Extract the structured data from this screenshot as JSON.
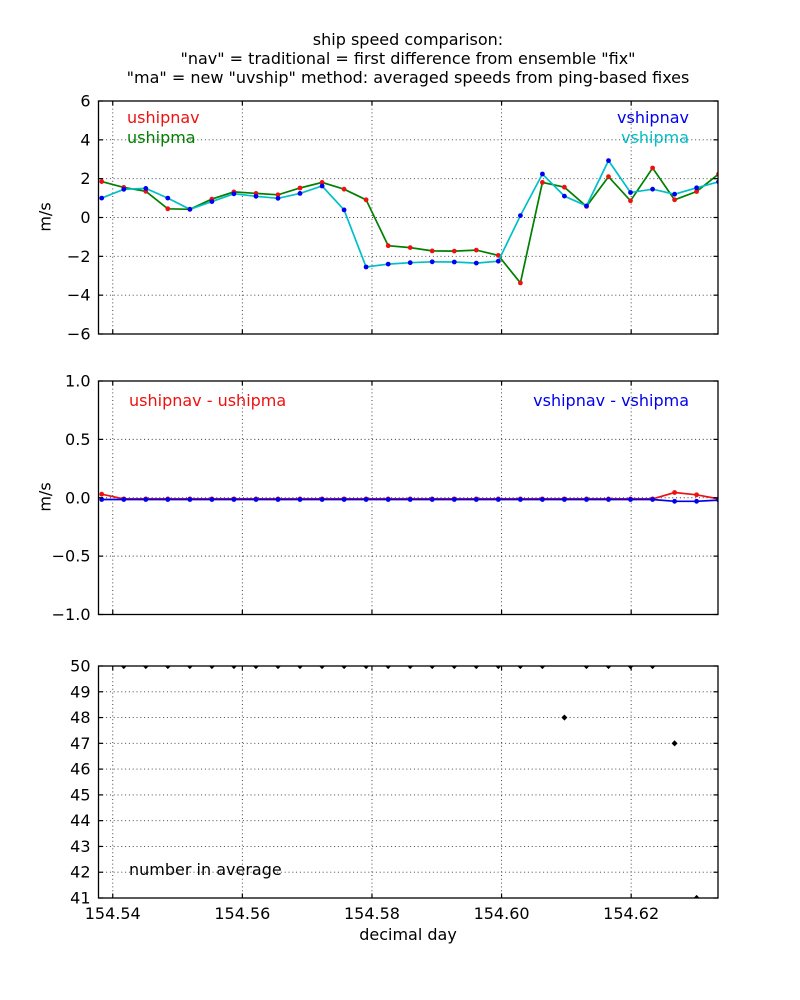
{
  "title": {
    "line1": "ship speed comparison:",
    "line2": "\"nav\" = traditional = first difference from ensemble \"fix\"",
    "line3": "\"ma\" = new \"uvship\" method: averaged speeds from ping-based fixes"
  },
  "xlabel": "decimal day",
  "colors": {
    "ushipnav": "#ee1111",
    "ushipma": "#008000",
    "vshipnav": "#0000ee",
    "vshipma": "#00bfc8",
    "count": "#000000",
    "axis": "#000000",
    "grid": "#333333",
    "background": "#ffffff"
  },
  "legends": {
    "ushipnav": "ushipnav",
    "ushipma": "ushipma",
    "vshipnav": "vshipnav",
    "vshipma": "vshipma",
    "udiff": "ushipnav - ushipma",
    "vdiff": "vshipnav - vshipma",
    "count": "number in average"
  },
  "chart_data": [
    {
      "type": "line",
      "ylabel": "m/s",
      "ylim": [
        -6,
        6
      ],
      "yticks": [
        -6,
        -4,
        -2,
        0,
        2,
        4,
        6
      ],
      "yticklabels": [
        "−6",
        "−4",
        "−2",
        "0",
        "2",
        "4",
        "6"
      ],
      "xlim": [
        154.5378,
        154.6334
      ],
      "xticks": [
        154.54,
        154.56,
        154.58,
        154.6,
        154.62
      ],
      "xticklabels": [
        "154.54",
        "154.56",
        "154.58",
        "154.60",
        "154.62"
      ],
      "show_xticklabels": false,
      "grid": true,
      "x": [
        154.5383,
        154.5417,
        154.5451,
        154.5485,
        154.5519,
        154.5553,
        154.5587,
        154.5621,
        154.5655,
        154.5689,
        154.5723,
        154.5757,
        154.5791,
        154.5825,
        154.5859,
        154.5893,
        154.5927,
        154.5961,
        154.5995,
        154.6029,
        154.6063,
        154.6097,
        154.6131,
        154.6165,
        154.6199,
        154.6233,
        154.6267,
        154.6301,
        154.6335
      ],
      "series": [
        {
          "name": "ushipma",
          "color": "ushipma",
          "line": true,
          "marker": null,
          "values": [
            1.85,
            1.55,
            1.35,
            0.45,
            0.42,
            0.95,
            1.32,
            1.24,
            1.17,
            1.52,
            1.81,
            1.46,
            0.91,
            -1.45,
            -1.55,
            -1.72,
            -1.73,
            -1.68,
            -1.95,
            -3.37,
            1.81,
            1.56,
            0.57,
            2.1,
            0.86,
            2.55,
            0.91,
            1.34,
            2.24
          ]
        },
        {
          "name": "ushipnav",
          "color": "ushipnav",
          "line": false,
          "marker": "circle",
          "values": [
            1.85,
            1.55,
            1.35,
            0.45,
            0.42,
            0.95,
            1.32,
            1.24,
            1.17,
            1.52,
            1.81,
            1.46,
            0.91,
            -1.45,
            -1.55,
            -1.72,
            -1.73,
            -1.68,
            -1.95,
            -3.37,
            1.81,
            1.56,
            0.57,
            2.1,
            0.86,
            2.55,
            0.91,
            1.34,
            2.24
          ]
        },
        {
          "name": "vshipma",
          "color": "vshipma",
          "line": true,
          "marker": null,
          "values": [
            1.0,
            1.45,
            1.5,
            1.0,
            0.42,
            0.82,
            1.22,
            1.09,
            0.99,
            1.24,
            1.62,
            0.39,
            -2.55,
            -2.4,
            -2.33,
            -2.28,
            -2.29,
            -2.35,
            -2.25,
            0.1,
            2.24,
            1.1,
            0.6,
            2.93,
            1.29,
            1.46,
            1.2,
            1.53,
            1.84
          ]
        },
        {
          "name": "vshipnav",
          "color": "vshipnav",
          "line": false,
          "marker": "circle",
          "values": [
            1.0,
            1.45,
            1.5,
            1.0,
            0.42,
            0.82,
            1.22,
            1.09,
            0.99,
            1.24,
            1.62,
            0.39,
            -2.55,
            -2.4,
            -2.33,
            -2.28,
            -2.29,
            -2.35,
            -2.25,
            0.1,
            2.24,
            1.1,
            0.6,
            2.93,
            1.29,
            1.46,
            1.2,
            1.53,
            1.84
          ]
        }
      ]
    },
    {
      "type": "line",
      "ylabel": "m/s",
      "ylim": [
        -1,
        1
      ],
      "yticks": [
        -1,
        -0.5,
        0,
        0.5,
        1
      ],
      "yticklabels": [
        "−1.0",
        "−0.5",
        "0.0",
        "0.5",
        "1.0"
      ],
      "xlim": [
        154.5378,
        154.6334
      ],
      "xticks": [
        154.54,
        154.56,
        154.58,
        154.6,
        154.62
      ],
      "xticklabels": [
        "154.54",
        "154.56",
        "154.58",
        "154.60",
        "154.62"
      ],
      "show_xticklabels": false,
      "grid": true,
      "x": [
        154.5383,
        154.5417,
        154.5451,
        154.5485,
        154.5519,
        154.5553,
        154.5587,
        154.5621,
        154.5655,
        154.5689,
        154.5723,
        154.5757,
        154.5791,
        154.5825,
        154.5859,
        154.5893,
        154.5927,
        154.5961,
        154.5995,
        154.6029,
        154.6063,
        154.6097,
        154.6131,
        154.6165,
        154.6199,
        154.6233,
        154.6267,
        154.6301,
        154.6335
      ],
      "series": [
        {
          "name": "ushipnav - ushipma",
          "color": "ushipnav",
          "line": true,
          "marker": "circle",
          "values": [
            0.03,
            -0.01,
            -0.01,
            -0.01,
            -0.01,
            -0.01,
            -0.01,
            -0.01,
            -0.01,
            -0.01,
            -0.01,
            -0.01,
            -0.01,
            -0.01,
            -0.01,
            -0.01,
            -0.01,
            -0.01,
            -0.01,
            -0.01,
            -0.01,
            -0.01,
            -0.01,
            -0.01,
            -0.01,
            -0.01,
            0.045,
            0.025,
            -0.01
          ]
        },
        {
          "name": "vshipnav - vshipma",
          "color": "vshipnav",
          "line": true,
          "marker": "circle",
          "values": [
            -0.015,
            -0.015,
            -0.015,
            -0.015,
            -0.015,
            -0.015,
            -0.015,
            -0.015,
            -0.015,
            -0.015,
            -0.015,
            -0.015,
            -0.015,
            -0.015,
            -0.015,
            -0.015,
            -0.015,
            -0.015,
            -0.015,
            -0.015,
            -0.015,
            -0.015,
            -0.015,
            -0.015,
            -0.015,
            -0.015,
            -0.03,
            -0.03,
            -0.02
          ]
        }
      ]
    },
    {
      "type": "scatter",
      "ylabel": "",
      "ylim": [
        41,
        50
      ],
      "yticks": [
        41,
        42,
        43,
        44,
        45,
        46,
        47,
        48,
        49,
        50
      ],
      "yticklabels": [
        "41",
        "42",
        "43",
        "44",
        "45",
        "46",
        "47",
        "48",
        "49",
        "50"
      ],
      "xlim": [
        154.5378,
        154.6334
      ],
      "xticks": [
        154.54,
        154.56,
        154.58,
        154.6,
        154.62
      ],
      "xticklabels": [
        "154.54",
        "154.56",
        "154.58",
        "154.60",
        "154.62"
      ],
      "show_xticklabels": true,
      "grid": true,
      "x": [
        154.5417,
        154.5451,
        154.5485,
        154.5519,
        154.5553,
        154.5587,
        154.5621,
        154.5655,
        154.5689,
        154.5723,
        154.5757,
        154.5791,
        154.5825,
        154.5859,
        154.5893,
        154.5927,
        154.5961,
        154.5995,
        154.6029,
        154.6063,
        154.6097,
        154.6131,
        154.6165,
        154.6199,
        154.6233,
        154.6267,
        154.6301
      ],
      "series": [
        {
          "name": "number in average",
          "color": "count",
          "line": false,
          "marker": "diamond",
          "values": [
            50,
            50,
            50,
            50,
            50,
            50,
            50,
            50,
            50,
            50,
            50,
            50,
            50,
            50,
            50,
            50,
            50,
            50,
            50,
            50,
            48,
            50,
            50,
            50,
            50,
            47,
            41
          ]
        }
      ]
    }
  ]
}
